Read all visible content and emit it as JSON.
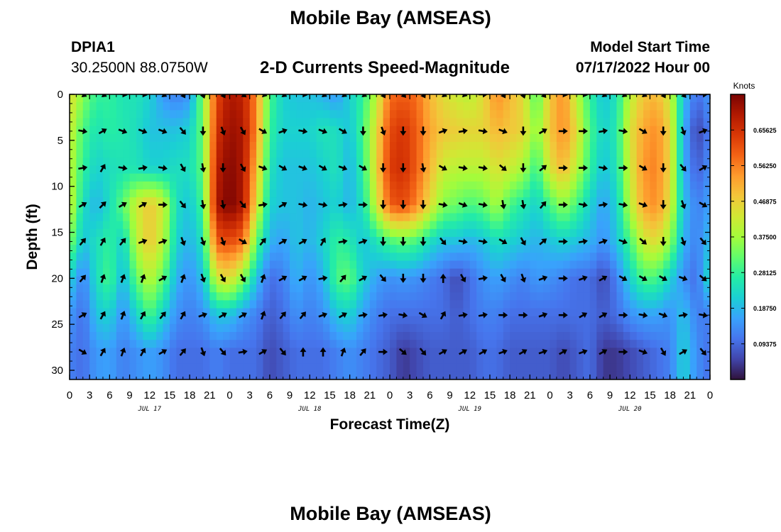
{
  "header": {
    "title": "Mobile Bay (AMSEAS)",
    "station_id": "DPIA1",
    "station_coords": "30.2500N  88.0750W",
    "product": "2-D Currents Speed-Magnitude",
    "model_start_label": "Model Start Time",
    "model_start_value": "07/17/2022 Hour 00"
  },
  "footer": {
    "title": "Mobile Bay (AMSEAS)"
  },
  "chart_data": {
    "type": "heatmap",
    "title": "2-D Currents Speed-Magnitude",
    "xlabel": "Forecast Time(Z)",
    "ylabel": "Depth (ft)",
    "x_ticks": [
      "0",
      "3",
      "6",
      "9",
      "12",
      "15",
      "18",
      "21",
      "0",
      "3",
      "6",
      "9",
      "12",
      "15",
      "18",
      "21",
      "0",
      "3",
      "6",
      "9",
      "12",
      "15",
      "18",
      "21",
      "0",
      "3",
      "6",
      "9",
      "12",
      "15",
      "18",
      "21",
      "0"
    ],
    "date_labels": [
      "JUL 17",
      "JUL 18",
      "JUL 19",
      "JUL 20"
    ],
    "xlim_hours": [
      0,
      96
    ],
    "y_ticks": [
      "0",
      "5",
      "10",
      "15",
      "20",
      "25",
      "30"
    ],
    "ylim": [
      0,
      31
    ],
    "y_inverted": true,
    "colorbar": {
      "label": "Knots",
      "ticks": [
        "0.65625",
        "0.56250",
        "0.46875",
        "0.37500",
        "0.28125",
        "0.18750",
        "0.09375"
      ],
      "range": [
        0,
        0.75
      ],
      "colors": [
        "#30123b",
        "#4145ab",
        "#4675ed",
        "#39a2fc",
        "#1bcfd4",
        "#24eca6",
        "#61fc6c",
        "#a4fc3b",
        "#d1e834",
        "#f3c63a",
        "#fe9b2d",
        "#f36315",
        "#d93806",
        "#b11901",
        "#7a0402"
      ]
    },
    "depth_levels_ft": [
      0,
      4,
      8,
      12,
      16,
      20,
      24,
      28
    ],
    "time_hours": [
      0,
      2,
      4,
      6,
      8,
      10,
      12,
      14,
      16,
      18,
      20,
      22,
      24,
      26,
      28,
      30,
      32,
      34,
      36,
      38,
      40,
      42,
      44,
      46,
      48,
      50,
      52,
      54,
      56,
      58,
      60,
      62,
      64,
      66,
      68,
      70,
      72,
      74,
      76,
      78,
      80,
      82,
      84,
      86,
      88,
      90,
      92,
      94,
      96
    ],
    "speed_knots": [
      [
        0.45,
        0.35,
        0.28,
        0.28,
        0.25,
        0.25,
        0.22,
        0.15,
        0.12,
        0.15,
        0.35,
        0.62,
        0.7,
        0.68,
        0.55,
        0.3,
        0.22,
        0.2,
        0.2,
        0.18,
        0.15,
        0.22,
        0.28,
        0.4,
        0.58,
        0.6,
        0.58,
        0.5,
        0.45,
        0.42,
        0.4,
        0.45,
        0.55,
        0.5,
        0.45,
        0.3,
        0.48,
        0.55,
        0.4,
        0.28,
        0.2,
        0.25,
        0.4,
        0.48,
        0.5,
        0.42,
        0.2,
        0.1,
        0.15
      ],
      [
        0.42,
        0.3,
        0.25,
        0.27,
        0.26,
        0.24,
        0.2,
        0.2,
        0.2,
        0.22,
        0.33,
        0.65,
        0.72,
        0.7,
        0.55,
        0.28,
        0.22,
        0.22,
        0.22,
        0.25,
        0.24,
        0.2,
        0.3,
        0.45,
        0.62,
        0.65,
        0.6,
        0.52,
        0.48,
        0.47,
        0.46,
        0.46,
        0.5,
        0.48,
        0.46,
        0.35,
        0.48,
        0.55,
        0.45,
        0.3,
        0.22,
        0.26,
        0.44,
        0.52,
        0.55,
        0.46,
        0.18,
        0.05,
        0.12
      ],
      [
        0.4,
        0.28,
        0.22,
        0.24,
        0.25,
        0.25,
        0.22,
        0.22,
        0.24,
        0.24,
        0.32,
        0.68,
        0.74,
        0.7,
        0.5,
        0.25,
        0.2,
        0.2,
        0.2,
        0.22,
        0.25,
        0.18,
        0.28,
        0.46,
        0.64,
        0.66,
        0.6,
        0.5,
        0.42,
        0.4,
        0.4,
        0.4,
        0.44,
        0.42,
        0.38,
        0.28,
        0.44,
        0.5,
        0.4,
        0.28,
        0.2,
        0.25,
        0.42,
        0.54,
        0.56,
        0.46,
        0.18,
        0.08,
        0.14
      ],
      [
        0.42,
        0.24,
        0.18,
        0.24,
        0.32,
        0.42,
        0.48,
        0.42,
        0.24,
        0.2,
        0.3,
        0.7,
        0.75,
        0.7,
        0.45,
        0.22,
        0.2,
        0.2,
        0.18,
        0.2,
        0.22,
        0.18,
        0.25,
        0.42,
        0.6,
        0.62,
        0.56,
        0.45,
        0.35,
        0.33,
        0.3,
        0.32,
        0.38,
        0.3,
        0.26,
        0.22,
        0.3,
        0.36,
        0.3,
        0.22,
        0.16,
        0.22,
        0.4,
        0.52,
        0.55,
        0.44,
        0.2,
        0.12,
        0.16
      ],
      [
        0.35,
        0.2,
        0.24,
        0.28,
        0.22,
        0.4,
        0.48,
        0.4,
        0.22,
        0.18,
        0.25,
        0.6,
        0.62,
        0.58,
        0.32,
        0.18,
        0.16,
        0.2,
        0.18,
        0.22,
        0.28,
        0.26,
        0.2,
        0.25,
        0.3,
        0.32,
        0.3,
        0.24,
        0.2,
        0.2,
        0.18,
        0.2,
        0.24,
        0.22,
        0.2,
        0.18,
        0.2,
        0.22,
        0.2,
        0.18,
        0.14,
        0.2,
        0.3,
        0.42,
        0.45,
        0.36,
        0.18,
        0.12,
        0.2
      ],
      [
        0.22,
        0.12,
        0.24,
        0.3,
        0.18,
        0.32,
        0.4,
        0.32,
        0.18,
        0.14,
        0.2,
        0.42,
        0.45,
        0.35,
        0.2,
        0.1,
        0.12,
        0.18,
        0.14,
        0.18,
        0.3,
        0.32,
        0.22,
        0.16,
        0.14,
        0.15,
        0.14,
        0.12,
        0.1,
        0.06,
        0.1,
        0.14,
        0.16,
        0.14,
        0.12,
        0.15,
        0.14,
        0.12,
        0.1,
        0.1,
        0.06,
        0.12,
        0.22,
        0.3,
        0.3,
        0.22,
        0.14,
        0.1,
        0.25
      ],
      [
        0.15,
        0.1,
        0.2,
        0.22,
        0.14,
        0.22,
        0.3,
        0.22,
        0.14,
        0.12,
        0.14,
        0.2,
        0.2,
        0.15,
        0.12,
        0.08,
        0.1,
        0.14,
        0.12,
        0.14,
        0.2,
        0.22,
        0.16,
        0.12,
        0.1,
        0.1,
        0.1,
        0.1,
        0.1,
        0.08,
        0.1,
        0.12,
        0.12,
        0.1,
        0.1,
        0.1,
        0.1,
        0.1,
        0.1,
        0.1,
        0.08,
        0.1,
        0.14,
        0.16,
        0.16,
        0.14,
        0.2,
        0.12,
        0.12
      ],
      [
        0.12,
        0.1,
        0.15,
        0.16,
        0.12,
        0.14,
        0.16,
        0.14,
        0.1,
        0.1,
        0.1,
        0.12,
        0.1,
        0.1,
        0.1,
        0.06,
        0.08,
        0.1,
        0.1,
        0.1,
        0.12,
        0.14,
        0.12,
        0.1,
        0.08,
        0.04,
        0.06,
        0.08,
        0.08,
        0.08,
        0.08,
        0.1,
        0.1,
        0.08,
        0.08,
        0.08,
        0.08,
        0.06,
        0.08,
        0.1,
        0.04,
        0.04,
        0.06,
        0.08,
        0.1,
        0.12,
        0.22,
        0.14,
        0.1
      ]
    ],
    "arrow_rows_ft": [
      0,
      4,
      8,
      12,
      16,
      20,
      24,
      28
    ],
    "arrow_times_hours": [
      2,
      5,
      8,
      11,
      14,
      17,
      20,
      23,
      26,
      29,
      32,
      35,
      38,
      41,
      44,
      47,
      50,
      53,
      56,
      59,
      62,
      65,
      68,
      71,
      74,
      77,
      80,
      83,
      86,
      89,
      92,
      95
    ],
    "arrow_direction_deg": [
      [
        120,
        120,
        100,
        100,
        120,
        150,
        160,
        150,
        130,
        110,
        120,
        100,
        120,
        120,
        120,
        150,
        140,
        150,
        120,
        110,
        90,
        150,
        160,
        140,
        100,
        100,
        120,
        120,
        120,
        150,
        140,
        90
      ],
      [
        100,
        60,
        110,
        110,
        110,
        140,
        180,
        160,
        150,
        120,
        70,
        100,
        110,
        120,
        180,
        160,
        180,
        180,
        70,
        80,
        100,
        110,
        180,
        60,
        90,
        90,
        80,
        100,
        120,
        180,
        160,
        70
      ],
      [
        80,
        30,
        100,
        80,
        100,
        150,
        170,
        180,
        150,
        110,
        120,
        110,
        120,
        110,
        120,
        180,
        180,
        170,
        120,
        100,
        100,
        130,
        180,
        50,
        90,
        90,
        100,
        90,
        120,
        180,
        140,
        60
      ],
      [
        60,
        45,
        60,
        60,
        90,
        140,
        170,
        170,
        140,
        80,
        60,
        100,
        100,
        80,
        90,
        180,
        180,
        180,
        100,
        110,
        100,
        170,
        170,
        40,
        90,
        100,
        80,
        100,
        110,
        180,
        160,
        120
      ],
      [
        40,
        30,
        40,
        70,
        70,
        160,
        160,
        160,
        120,
        40,
        60,
        60,
        30,
        80,
        70,
        180,
        180,
        180,
        140,
        100,
        100,
        120,
        150,
        50,
        90,
        80,
        70,
        110,
        130,
        180,
        160,
        140
      ],
      [
        40,
        20,
        20,
        20,
        60,
        20,
        160,
        150,
        150,
        20,
        60,
        60,
        80,
        40,
        60,
        140,
        180,
        180,
        0,
        150,
        80,
        150,
        160,
        70,
        90,
        70,
        60,
        120,
        120,
        120,
        110,
        130
      ],
      [
        60,
        30,
        20,
        30,
        40,
        30,
        70,
        60,
        60,
        20,
        40,
        40,
        70,
        60,
        80,
        80,
        100,
        120,
        30,
        80,
        80,
        90,
        90,
        70,
        90,
        60,
        60,
        90,
        100,
        110,
        80,
        100
      ],
      [
        120,
        30,
        20,
        30,
        60,
        40,
        160,
        140,
        80,
        60,
        140,
        0,
        0,
        20,
        40,
        90,
        130,
        140,
        60,
        60,
        60,
        70,
        60,
        70,
        60,
        70,
        60,
        90,
        110,
        150,
        60,
        140
      ]
    ]
  }
}
